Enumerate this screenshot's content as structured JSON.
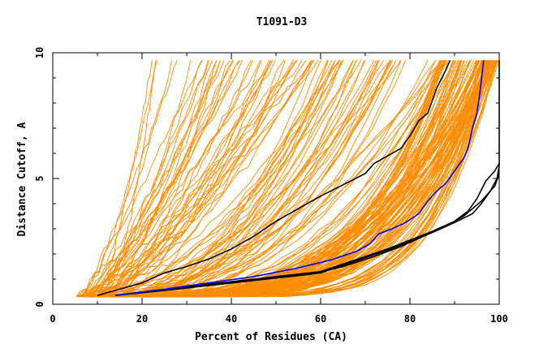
{
  "chart_data": {
    "type": "line",
    "title": "T1091-D3",
    "xlabel": "Percent of Residues (CA)",
    "ylabel": "Distance Cutoff, A",
    "xlim": [
      0,
      100
    ],
    "ylim": [
      0,
      10
    ],
    "x_ticks": [
      "0",
      "20",
      "40",
      "60",
      "80",
      "100"
    ],
    "y_ticks": [
      "0",
      "5",
      "10"
    ],
    "grid": false,
    "colors": {
      "bundle": "#ff8c00",
      "highlight_black": "#000000",
      "highlight_blue": "#0000ff"
    },
    "series": [
      {
        "color": "#000000",
        "points": [
          [
            10,
            0.35
          ],
          [
            15,
            0.6
          ],
          [
            20,
            0.85
          ],
          [
            25,
            1.25
          ],
          [
            30,
            1.5
          ],
          [
            35,
            1.8
          ],
          [
            40,
            2.2
          ],
          [
            45,
            2.7
          ],
          [
            50,
            3.3
          ],
          [
            55,
            3.8
          ],
          [
            60,
            4.3
          ],
          [
            65,
            4.75
          ],
          [
            70,
            5.2
          ],
          [
            72,
            5.6
          ],
          [
            75,
            5.9
          ],
          [
            78,
            6.2
          ],
          [
            80,
            6.7
          ],
          [
            82,
            7.3
          ],
          [
            84,
            7.6
          ],
          [
            86,
            8.6
          ],
          [
            88,
            9.3
          ],
          [
            89,
            9.7
          ]
        ]
      },
      {
        "color": "#000000",
        "points": [
          [
            14,
            0.35
          ],
          [
            25,
            0.6
          ],
          [
            35,
            0.8
          ],
          [
            45,
            1.0
          ],
          [
            55,
            1.2
          ],
          [
            60,
            1.3
          ],
          [
            65,
            1.6
          ],
          [
            70,
            1.9
          ],
          [
            75,
            2.2
          ],
          [
            80,
            2.55
          ],
          [
            85,
            2.9
          ],
          [
            90,
            3.3
          ],
          [
            93,
            3.7
          ],
          [
            95,
            4.2
          ],
          [
            97,
            4.9
          ],
          [
            99,
            5.3
          ],
          [
            100,
            5.6
          ]
        ]
      },
      {
        "color": "#000000",
        "points": [
          [
            14,
            0.35
          ],
          [
            25,
            0.55
          ],
          [
            35,
            0.75
          ],
          [
            45,
            0.95
          ],
          [
            55,
            1.15
          ],
          [
            60,
            1.25
          ],
          [
            65,
            1.55
          ],
          [
            70,
            1.85
          ],
          [
            75,
            2.15
          ],
          [
            80,
            2.5
          ],
          [
            85,
            2.85
          ],
          [
            90,
            3.25
          ],
          [
            94,
            3.6
          ],
          [
            96,
            4.0
          ],
          [
            98,
            4.5
          ],
          [
            99.5,
            5.0
          ],
          [
            100,
            5.5
          ],
          [
            100,
            9.7
          ]
        ]
      },
      {
        "color": "#000000",
        "points": [
          [
            14,
            0.35
          ],
          [
            30,
            0.65
          ],
          [
            45,
            0.95
          ],
          [
            58,
            1.2
          ],
          [
            65,
            1.5
          ],
          [
            72,
            1.9
          ],
          [
            78,
            2.3
          ],
          [
            83,
            2.7
          ],
          [
            88,
            3.1
          ],
          [
            92,
            3.5
          ],
          [
            96,
            4.1
          ],
          [
            99,
            4.7
          ],
          [
            100,
            5.2
          ]
        ]
      },
      {
        "color": "#0000ff",
        "points": [
          [
            14,
            0.35
          ],
          [
            25,
            0.6
          ],
          [
            35,
            0.85
          ],
          [
            45,
            1.1
          ],
          [
            55,
            1.45
          ],
          [
            62,
            1.75
          ],
          [
            68,
            2.1
          ],
          [
            71,
            2.4
          ],
          [
            73,
            2.8
          ],
          [
            76,
            3.0
          ],
          [
            79,
            3.25
          ],
          [
            82,
            3.6
          ],
          [
            84,
            4.1
          ],
          [
            86,
            4.5
          ],
          [
            88,
            4.8
          ],
          [
            90,
            5.3
          ],
          [
            92,
            5.8
          ],
          [
            93,
            6.2
          ],
          [
            94,
            7.0
          ],
          [
            95,
            7.6
          ],
          [
            95.5,
            8.2
          ],
          [
            96,
            8.9
          ],
          [
            96.5,
            9.7
          ]
        ]
      }
    ]
  }
}
